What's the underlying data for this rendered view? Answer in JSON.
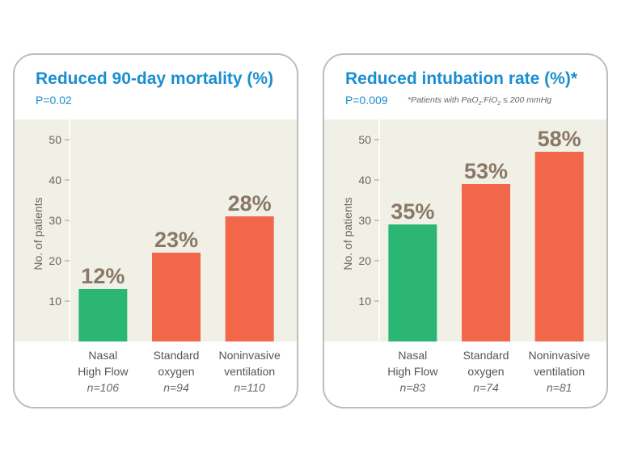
{
  "panels": [
    {
      "title": "Reduced 90-day mortality (%)",
      "p_value": "P=0.02",
      "note": ""
    },
    {
      "title": "Reduced intubation rate (%)*",
      "p_value": "P=0.009",
      "note": "*Patients with PaO2:FiO2 ≤ 200 mmHg",
      "note_parts": [
        "*Patients with PaO",
        "2",
        ":FiO",
        "2",
        " ≤ 200 mmHg"
      ]
    }
  ],
  "chart_data": [
    {
      "type": "bar",
      "title": "Reduced 90-day mortality (%)",
      "xlabel": "",
      "ylabel": "No. of patients",
      "ylim": [
        0,
        55
      ],
      "yticks": [
        10,
        20,
        30,
        40,
        50
      ],
      "grid": false,
      "categories": [
        {
          "line1": "Nasal",
          "line2": "High Flow",
          "n": "n=106"
        },
        {
          "line1": "Standard",
          "line2": "oxygen",
          "n": "n=94"
        },
        {
          "line1": "Noninvasive",
          "line2": "ventilation",
          "n": "n=110"
        }
      ],
      "values": [
        13,
        22,
        31
      ],
      "data_labels": [
        "12%",
        "23%",
        "28%"
      ],
      "colors": [
        "#2bb673",
        "#f2674a",
        "#f2674a"
      ]
    },
    {
      "type": "bar",
      "title": "Reduced intubation rate (%)*",
      "xlabel": "",
      "ylabel": "No. of patients",
      "ylim": [
        0,
        55
      ],
      "yticks": [
        10,
        20,
        30,
        40,
        50
      ],
      "grid": false,
      "categories": [
        {
          "line1": "Nasal",
          "line2": "High Flow",
          "n": "n=83"
        },
        {
          "line1": "Standard",
          "line2": "oxygen",
          "n": "n=74"
        },
        {
          "line1": "Noninvasive",
          "line2": "ventilation",
          "n": "n=81"
        }
      ],
      "values": [
        29,
        39,
        47
      ],
      "data_labels": [
        "35%",
        "53%",
        "58%"
      ],
      "colors": [
        "#2bb673",
        "#f2674a",
        "#f2674a"
      ]
    }
  ],
  "colors": {
    "title": "#1a8ed0",
    "nasal_high_flow": "#2bb673",
    "comparator": "#f2674a",
    "data_label": "#8a7866",
    "plot_background": "#f1f0e7"
  }
}
